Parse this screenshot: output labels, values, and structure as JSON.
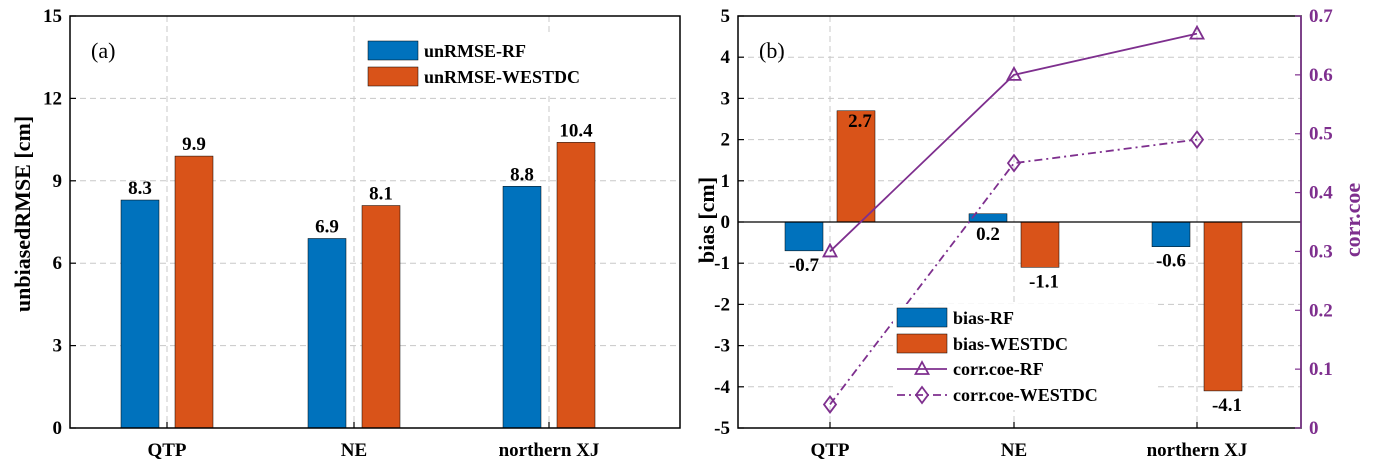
{
  "colors": {
    "rf": "#0072BD",
    "westdc": "#D95319",
    "purple": "#7E2F8E",
    "grid": "#c8c8c8"
  },
  "chart_data": [
    {
      "panel_label": "(a)",
      "type": "bar",
      "categories": [
        "QTP",
        "NE",
        "northern XJ"
      ],
      "series": [
        {
          "name": "unRMSE-RF",
          "values": [
            8.3,
            6.9,
            8.8
          ],
          "labels": [
            "8.3",
            "6.9",
            "8.8"
          ]
        },
        {
          "name": "unRMSE-WESTDC",
          "values": [
            9.9,
            8.1,
            10.4
          ],
          "labels": [
            "9.9",
            "8.1",
            "10.4"
          ]
        }
      ],
      "ylabel": "unbiasedRMSE [cm]",
      "ylim": [
        0,
        15
      ],
      "yticks": [
        "0",
        "3",
        "6",
        "9",
        "12",
        "15"
      ],
      "grid": true,
      "legend": "top-right"
    },
    {
      "panel_label": "(b)",
      "type": "bar+line",
      "categories": [
        "QTP",
        "NE",
        "northern XJ"
      ],
      "bar_series": [
        {
          "name": "bias-RF",
          "values": [
            -0.7,
            0.2,
            -0.6
          ],
          "labels": [
            "-0.7",
            "0.2",
            "-0.6"
          ]
        },
        {
          "name": "bias-WESTDC",
          "values": [
            2.7,
            -1.1,
            -4.1
          ],
          "labels": [
            "2.7",
            "-1.1",
            "-4.1"
          ]
        }
      ],
      "line_series": [
        {
          "name": "corr.coe-RF",
          "values": [
            0.3,
            0.6,
            0.67
          ],
          "marker": "triangle",
          "style": "solid"
        },
        {
          "name": "corr.coe-WESTDC",
          "values": [
            0.04,
            0.45,
            0.49
          ],
          "marker": "diamond",
          "style": "dash-dot"
        }
      ],
      "ylabel": "bias [cm]",
      "ylim": [
        -5,
        5
      ],
      "yticks": [
        "-5",
        "-4",
        "-3",
        "-2",
        "-1",
        "0",
        "1",
        "2",
        "3",
        "4",
        "5"
      ],
      "y2label": "corr.coe",
      "y2lim": [
        0,
        0.7
      ],
      "y2ticks": [
        "0",
        "0.1",
        "0.2",
        "0.3",
        "0.4",
        "0.5",
        "0.6",
        "0.7"
      ],
      "grid": true,
      "legend": "bottom-center"
    }
  ]
}
